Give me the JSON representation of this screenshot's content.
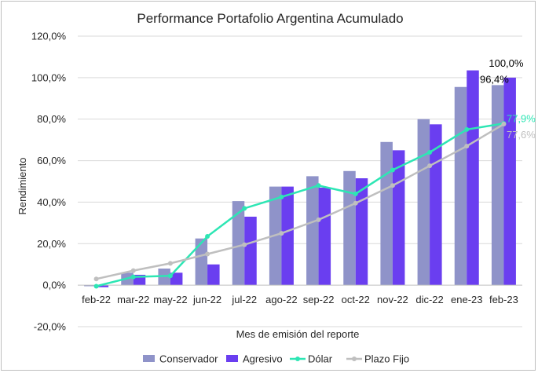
{
  "chart_data": {
    "type": "bar",
    "title": "Performance Portafolio Argentina Acumulado",
    "xlabel": "Mes de emisión del reporte",
    "ylabel": "Rendimiento",
    "ylim": [
      -20,
      120
    ],
    "yticks": [
      -20,
      0,
      20,
      40,
      60,
      80,
      100,
      120
    ],
    "ytick_labels": [
      "-20,0%",
      "0,0%",
      "20,0%",
      "40,0%",
      "60,0%",
      "80,0%",
      "100,0%",
      "120,0%"
    ],
    "grid": true,
    "legend_position": "bottom",
    "categories": [
      "feb-22",
      "mar-22",
      "may-22",
      "jun-22",
      "jul-22",
      "ago-22",
      "sep-22",
      "oct-22",
      "nov-22",
      "dic-22",
      "ene-23",
      "feb-23"
    ],
    "series": [
      {
        "name": "Conservador",
        "kind": "bar",
        "color": "#8f93c9",
        "values": [
          -0.5,
          6,
          8,
          22.5,
          40.5,
          47.5,
          52.5,
          55,
          69,
          80,
          95.5,
          96.4
        ]
      },
      {
        "name": "Agresivo",
        "kind": "bar",
        "color": "#6a3ef0",
        "values": [
          -1,
          5,
          6,
          10,
          33,
          47.5,
          47,
          51.5,
          65,
          77.5,
          103.5,
          100
        ]
      },
      {
        "name": "Dólar",
        "kind": "line",
        "color": "#2de6b4",
        "values": [
          -0.5,
          4,
          4.5,
          23.5,
          37,
          42.5,
          48,
          44,
          55.5,
          64,
          75,
          77.9
        ]
      },
      {
        "name": "Plazo Fijo",
        "kind": "line",
        "color": "#bfbfbf",
        "values": [
          3,
          7,
          10.5,
          15,
          19.5,
          25,
          31.5,
          39.5,
          48,
          57.5,
          67,
          77.6
        ]
      }
    ],
    "data_labels": [
      {
        "text": "100,0%",
        "series": "Agresivo",
        "category": "feb-23",
        "value": 100,
        "color": "#000000"
      },
      {
        "text": "96,4%",
        "series": "Conservador",
        "category": "feb-23",
        "value": 96.4,
        "color": "#000000"
      },
      {
        "text": "77,9%",
        "series": "Dólar",
        "category": "feb-23",
        "value": 77.9,
        "color": "#2de6b4"
      },
      {
        "text": "77,6%",
        "series": "Plazo Fijo",
        "category": "feb-23",
        "value": 77.6,
        "color": "#bfbfbf"
      }
    ]
  }
}
